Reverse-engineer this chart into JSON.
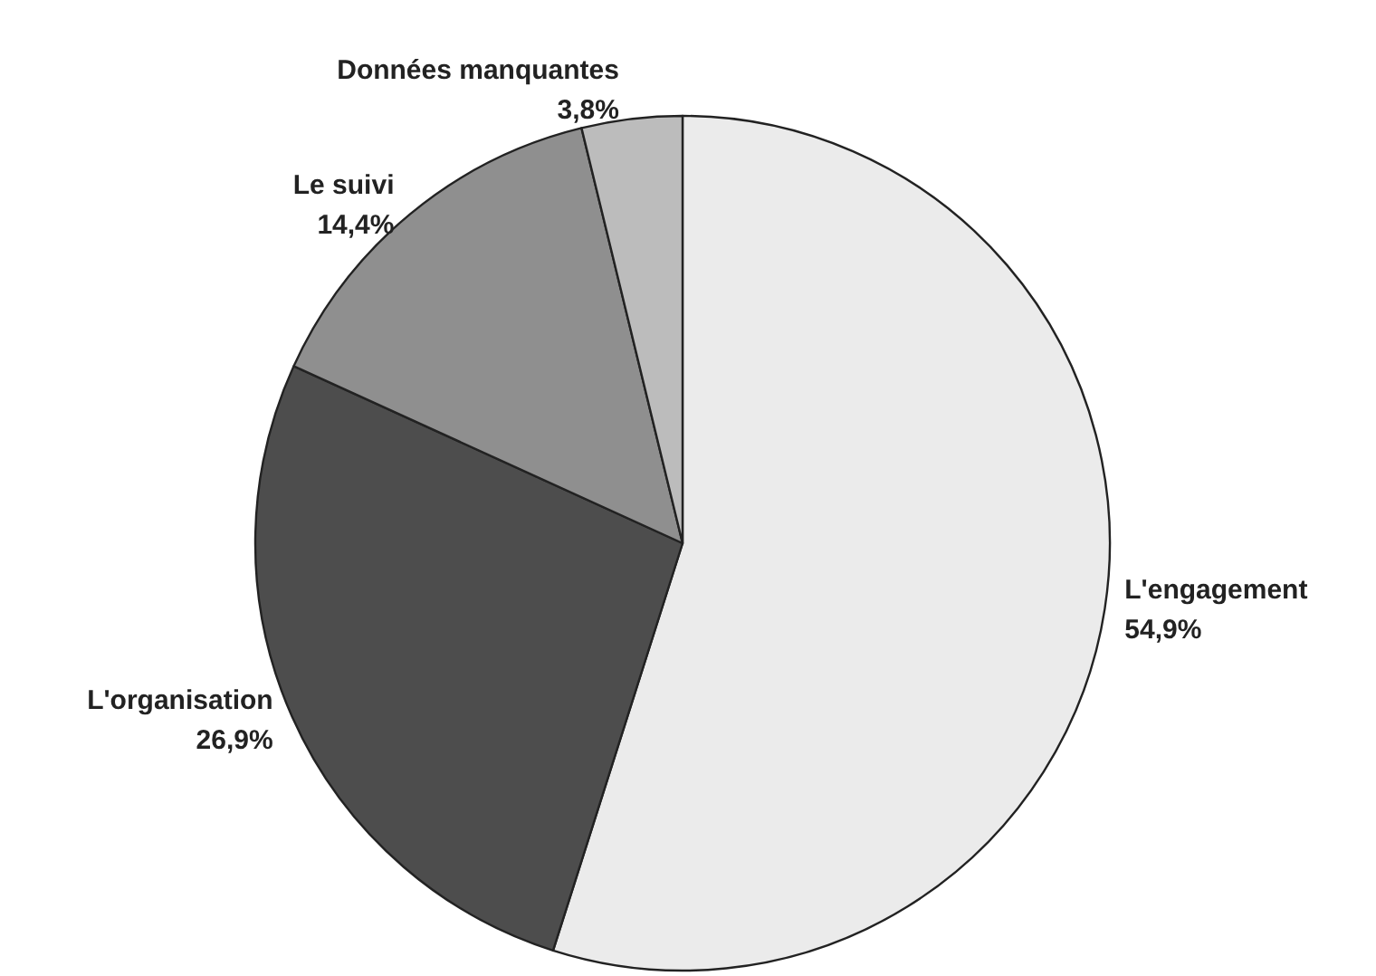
{
  "chart_data": {
    "type": "pie",
    "categories": [
      "L'engagement",
      "L'organisation",
      "Le suivi",
      "Données manquantes"
    ],
    "values": [
      54.9,
      26.9,
      14.4,
      3.8
    ],
    "colors": [
      "#ebebeb",
      "#4d4d4d",
      "#8f8f8f",
      "#bcbcbc"
    ],
    "value_labels": [
      "54,9%",
      "26,9%",
      "14,4%",
      "3,8%"
    ],
    "legend": false
  }
}
